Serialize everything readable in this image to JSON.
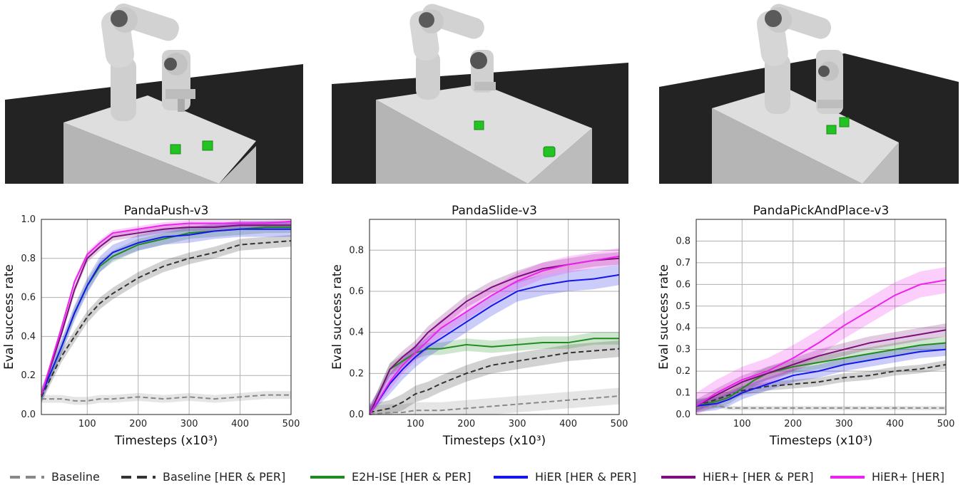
{
  "colors": {
    "baseline": "#888888",
    "baseline_herper": "#333333",
    "e2h": "#1f8a1f",
    "hier": "#1515ee",
    "hierplus_herper": "#7d0e7d",
    "hierplus_her": "#ee22ee",
    "table_top": "#dedede",
    "floor": "#232323"
  },
  "legend": [
    {
      "label": "Baseline",
      "color_key": "baseline",
      "dash": true
    },
    {
      "label": "Baseline [HER & PER]",
      "color_key": "baseline_herper",
      "dash": true
    },
    {
      "label": "E2H-ISE [HER & PER]",
      "color_key": "e2h",
      "dash": false
    },
    {
      "label": "HiER [HER & PER]",
      "color_key": "hier",
      "dash": false
    },
    {
      "label": "HiER+ [HER & PER]",
      "color_key": "hierplus_herper",
      "dash": false
    },
    {
      "label": "HiER+ [HER]",
      "color_key": "hierplus_her",
      "dash": false
    }
  ],
  "scenes": [
    {
      "name": "push-scene",
      "cubes": [
        "cube-left",
        "cube-right"
      ]
    },
    {
      "name": "slide-scene",
      "cubes": [
        "puck-far",
        "puck-near"
      ]
    },
    {
      "name": "pickplace-scene",
      "cubes": [
        "cube-low",
        "cube-high"
      ]
    }
  ],
  "chart_data": [
    {
      "type": "line",
      "title": "PandaPush-v3",
      "xlabel": "Timesteps (x10³)",
      "ylabel": "Eval success rate",
      "xlim": [
        10,
        500
      ],
      "ylim": [
        0,
        1.0
      ],
      "xticks": [
        100,
        200,
        300,
        400,
        500
      ],
      "yticks": [
        0.0,
        0.2,
        0.4,
        0.6,
        0.8,
        1.0
      ],
      "grid": true,
      "x": [
        10,
        50,
        75,
        100,
        125,
        150,
        200,
        250,
        300,
        350,
        400,
        450,
        500
      ],
      "series": [
        {
          "name": "Baseline",
          "values": [
            0.08,
            0.08,
            0.07,
            0.07,
            0.08,
            0.08,
            0.09,
            0.08,
            0.09,
            0.08,
            0.09,
            0.1,
            0.1
          ],
          "band": 0.02
        },
        {
          "name": "Baseline [HER & PER]",
          "values": [
            0.09,
            0.3,
            0.4,
            0.5,
            0.57,
            0.62,
            0.7,
            0.76,
            0.8,
            0.83,
            0.87,
            0.88,
            0.89
          ],
          "band": 0.03
        },
        {
          "name": "E2H-ISE [HER & PER]",
          "values": [
            0.1,
            0.35,
            0.52,
            0.66,
            0.76,
            0.81,
            0.87,
            0.9,
            0.93,
            0.94,
            0.95,
            0.96,
            0.96
          ],
          "band": 0.03
        },
        {
          "name": "HiER [HER & PER]",
          "values": [
            0.1,
            0.35,
            0.52,
            0.66,
            0.77,
            0.83,
            0.88,
            0.91,
            0.92,
            0.94,
            0.95,
            0.95,
            0.95
          ],
          "band": 0.04
        },
        {
          "name": "HiER+ [HER & PER]",
          "values": [
            0.1,
            0.42,
            0.64,
            0.8,
            0.86,
            0.91,
            0.93,
            0.95,
            0.96,
            0.96,
            0.97,
            0.97,
            0.97
          ],
          "band": 0.02
        },
        {
          "name": "HiER+ [HER]",
          "values": [
            0.1,
            0.45,
            0.68,
            0.82,
            0.88,
            0.93,
            0.95,
            0.97,
            0.98,
            0.98,
            0.98,
            0.98,
            0.99
          ],
          "band": 0.015
        }
      ]
    },
    {
      "type": "line",
      "title": "PandaSlide-v3",
      "xlabel": "Timesteps (x10³)",
      "ylabel": "Eval success rate",
      "xlim": [
        10,
        500
      ],
      "ylim": [
        0,
        0.95
      ],
      "xticks": [
        100,
        200,
        300,
        400,
        500
      ],
      "yticks": [
        0.0,
        0.2,
        0.4,
        0.6,
        0.8
      ],
      "grid": true,
      "x": [
        10,
        50,
        75,
        100,
        125,
        150,
        200,
        250,
        300,
        350,
        400,
        450,
        500
      ],
      "series": [
        {
          "name": "Baseline",
          "values": [
            0.0,
            0.01,
            0.01,
            0.02,
            0.02,
            0.02,
            0.03,
            0.04,
            0.05,
            0.06,
            0.07,
            0.08,
            0.09
          ],
          "band": 0.04
        },
        {
          "name": "Baseline [HER & PER]",
          "values": [
            0.01,
            0.03,
            0.06,
            0.1,
            0.12,
            0.15,
            0.2,
            0.24,
            0.26,
            0.28,
            0.3,
            0.31,
            0.32
          ],
          "band": 0.04
        },
        {
          "name": "E2H-ISE [HER & PER]",
          "values": [
            0.0,
            0.22,
            0.26,
            0.3,
            0.32,
            0.32,
            0.34,
            0.33,
            0.34,
            0.35,
            0.35,
            0.37,
            0.37
          ],
          "band": 0.03
        },
        {
          "name": "HiER [HER & PER]",
          "values": [
            0.0,
            0.15,
            0.22,
            0.28,
            0.33,
            0.37,
            0.45,
            0.53,
            0.6,
            0.63,
            0.65,
            0.66,
            0.68
          ],
          "band": 0.05
        },
        {
          "name": "HiER+ [HER & PER]",
          "values": [
            0.0,
            0.22,
            0.28,
            0.33,
            0.4,
            0.45,
            0.55,
            0.62,
            0.67,
            0.71,
            0.73,
            0.75,
            0.76
          ],
          "band": 0.03
        },
        {
          "name": "HiER+ [HER]",
          "values": [
            0.0,
            0.16,
            0.24,
            0.3,
            0.36,
            0.42,
            0.5,
            0.58,
            0.65,
            0.7,
            0.73,
            0.75,
            0.77
          ],
          "band": 0.04
        }
      ]
    },
    {
      "type": "line",
      "title": "PandaPickAndPlace-v3",
      "xlabel": "Timesteps (x10³)",
      "ylabel": "Eval success rate",
      "xlim": [
        10,
        500
      ],
      "ylim": [
        0,
        0.9
      ],
      "xticks": [
        100,
        200,
        300,
        400,
        500
      ],
      "yticks": [
        0.0,
        0.1,
        0.2,
        0.3,
        0.4,
        0.5,
        0.6,
        0.7,
        0.8
      ],
      "grid": true,
      "x": [
        10,
        50,
        75,
        100,
        125,
        150,
        200,
        250,
        300,
        350,
        400,
        450,
        500
      ],
      "series": [
        {
          "name": "Baseline",
          "values": [
            0.03,
            0.04,
            0.03,
            0.03,
            0.03,
            0.03,
            0.03,
            0.03,
            0.03,
            0.03,
            0.03,
            0.03,
            0.03
          ],
          "band": 0.01
        },
        {
          "name": "Baseline [HER & PER]",
          "values": [
            0.04,
            0.07,
            0.09,
            0.11,
            0.12,
            0.13,
            0.14,
            0.15,
            0.17,
            0.18,
            0.2,
            0.21,
            0.23
          ],
          "band": 0.02
        },
        {
          "name": "E2H-ISE [HER & PER]",
          "values": [
            0.04,
            0.06,
            0.08,
            0.12,
            0.16,
            0.19,
            0.22,
            0.24,
            0.26,
            0.28,
            0.3,
            0.32,
            0.33
          ],
          "band": 0.03
        },
        {
          "name": "HiER [HER & PER]",
          "values": [
            0.04,
            0.05,
            0.07,
            0.1,
            0.12,
            0.14,
            0.18,
            0.2,
            0.23,
            0.25,
            0.27,
            0.29,
            0.3
          ],
          "band": 0.03
        },
        {
          "name": "HiER+ [HER & PER]",
          "values": [
            0.04,
            0.09,
            0.12,
            0.15,
            0.17,
            0.19,
            0.23,
            0.27,
            0.3,
            0.33,
            0.35,
            0.37,
            0.39
          ],
          "band": 0.03
        },
        {
          "name": "HiER+ [HER]",
          "values": [
            0.04,
            0.1,
            0.13,
            0.16,
            0.18,
            0.2,
            0.26,
            0.33,
            0.41,
            0.48,
            0.55,
            0.6,
            0.62
          ],
          "band": 0.06
        }
      ]
    }
  ]
}
